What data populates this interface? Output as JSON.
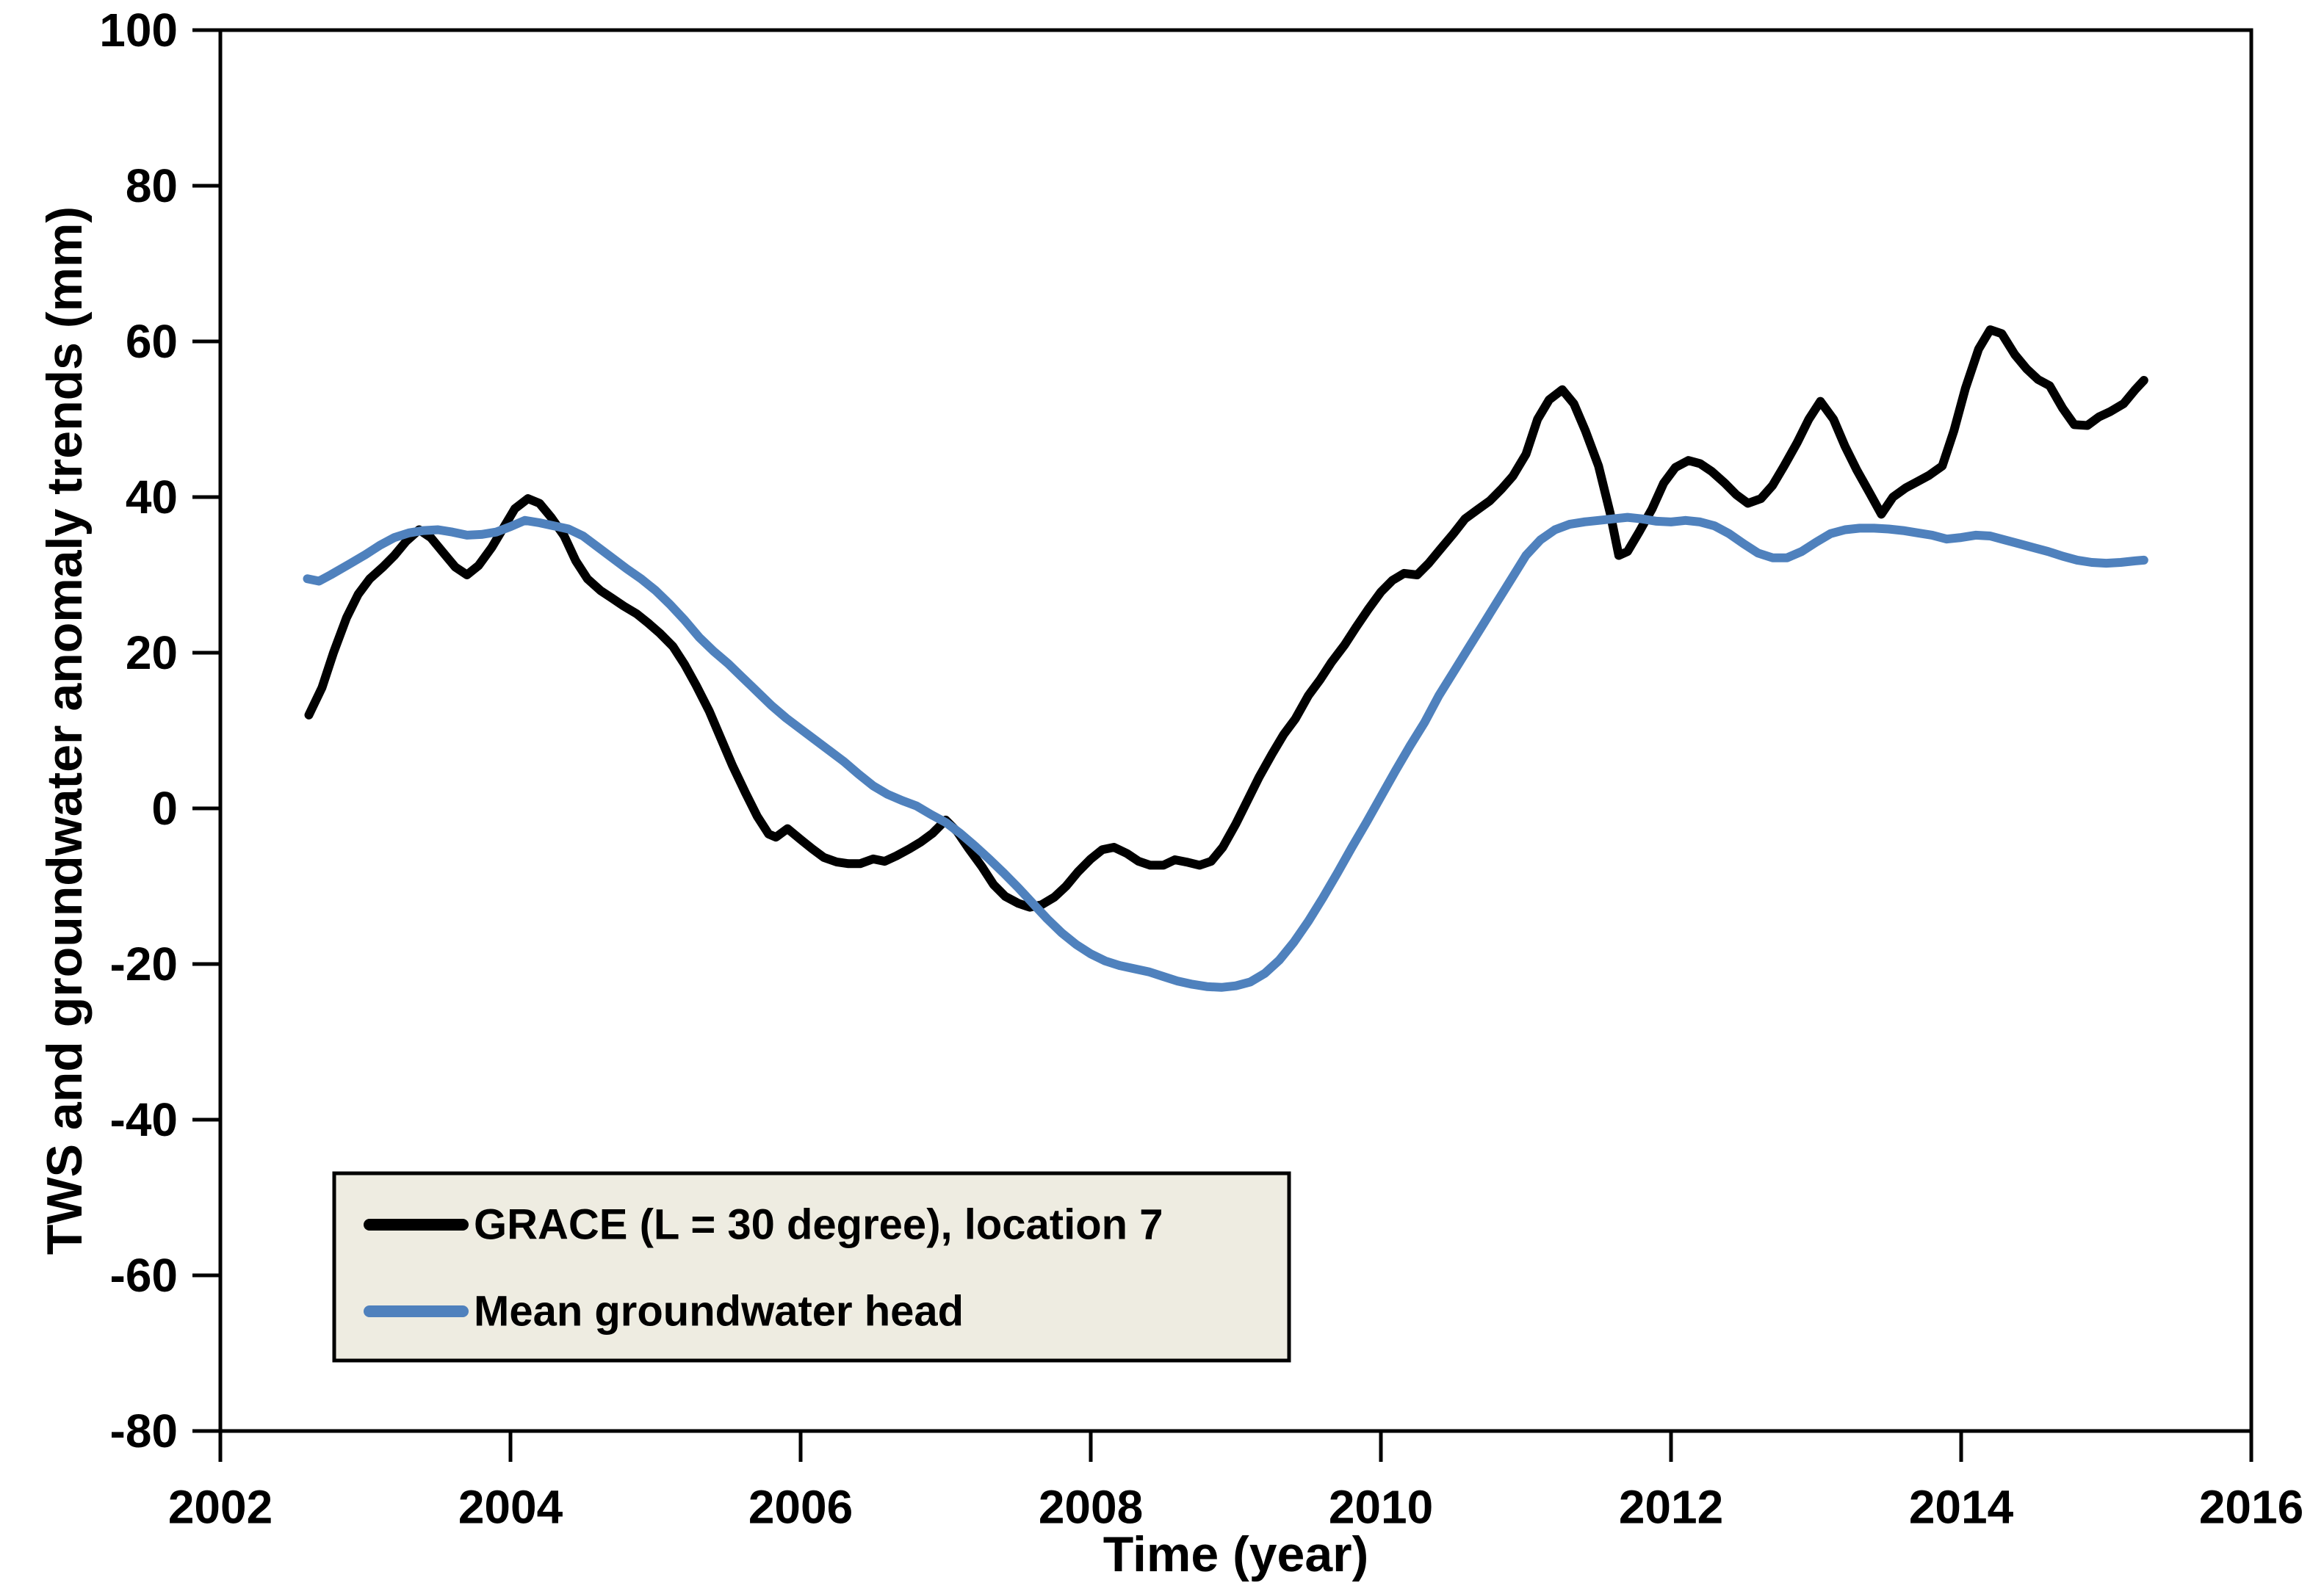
{
  "figure": {
    "background": "#ffffff"
  },
  "chart_data": {
    "type": "line",
    "title": "",
    "xlabel": "Time (year)",
    "ylabel": "TWS and groundwater anomaly trends (mm)",
    "xlim": [
      2002,
      2016
    ],
    "ylim": [
      -80,
      100
    ],
    "x_ticks": [
      2002,
      2004,
      2006,
      2008,
      2010,
      2012,
      2014,
      2016
    ],
    "y_ticks": [
      100,
      80,
      60,
      40,
      20,
      0,
      -20,
      -40,
      -60,
      -80
    ],
    "grid": false,
    "axis_color": "#000000",
    "legend": {
      "position": "lower-left",
      "background": "#eeece1",
      "border_color": "#000000"
    },
    "series": [
      {
        "name": "GRACE (L = 30 degree), location 7",
        "color": "#000000",
        "points": [
          [
            2002.61,
            12
          ],
          [
            2002.7,
            15.5
          ],
          [
            2002.78,
            20
          ],
          [
            2002.87,
            24.5
          ],
          [
            2002.95,
            27.5
          ],
          [
            2003.03,
            29.5
          ],
          [
            2003.12,
            31
          ],
          [
            2003.2,
            32.5
          ],
          [
            2003.28,
            34.3
          ],
          [
            2003.37,
            35.8
          ],
          [
            2003.45,
            34.8
          ],
          [
            2003.53,
            33
          ],
          [
            2003.62,
            31
          ],
          [
            2003.7,
            30
          ],
          [
            2003.78,
            31.2
          ],
          [
            2003.87,
            33.5
          ],
          [
            2003.95,
            36
          ],
          [
            2004.03,
            38.5
          ],
          [
            2004.12,
            39.8
          ],
          [
            2004.2,
            39.2
          ],
          [
            2004.28,
            37.4
          ],
          [
            2004.37,
            35
          ],
          [
            2004.45,
            31.8
          ],
          [
            2004.53,
            29.5
          ],
          [
            2004.62,
            28
          ],
          [
            2004.7,
            27
          ],
          [
            2004.78,
            26
          ],
          [
            2004.87,
            25
          ],
          [
            2004.95,
            23.8
          ],
          [
            2005.03,
            22.5
          ],
          [
            2005.12,
            20.8
          ],
          [
            2005.2,
            18.5
          ],
          [
            2005.28,
            15.8
          ],
          [
            2005.37,
            12.5
          ],
          [
            2005.45,
            9
          ],
          [
            2005.53,
            5.5
          ],
          [
            2005.62,
            2
          ],
          [
            2005.7,
            -1
          ],
          [
            2005.78,
            -3.3
          ],
          [
            2005.83,
            -3.7
          ],
          [
            2005.91,
            -2.6
          ],
          [
            2006.0,
            -4
          ],
          [
            2006.08,
            -5.2
          ],
          [
            2006.16,
            -6.3
          ],
          [
            2006.25,
            -6.9
          ],
          [
            2006.33,
            -7.1
          ],
          [
            2006.41,
            -7.1
          ],
          [
            2006.5,
            -6.5
          ],
          [
            2006.58,
            -6.8
          ],
          [
            2006.66,
            -6.1
          ],
          [
            2006.75,
            -5.2
          ],
          [
            2006.83,
            -4.3
          ],
          [
            2006.91,
            -3.2
          ],
          [
            2007.0,
            -1.5
          ],
          [
            2007.08,
            -3
          ],
          [
            2007.16,
            -5.2
          ],
          [
            2007.25,
            -7.5
          ],
          [
            2007.33,
            -9.8
          ],
          [
            2007.41,
            -11.3
          ],
          [
            2007.5,
            -12.2
          ],
          [
            2007.58,
            -12.7
          ],
          [
            2007.66,
            -12.4
          ],
          [
            2007.75,
            -11.4
          ],
          [
            2007.83,
            -10
          ],
          [
            2007.91,
            -8.2
          ],
          [
            2008.0,
            -6.5
          ],
          [
            2008.08,
            -5.3
          ],
          [
            2008.16,
            -5
          ],
          [
            2008.25,
            -5.8
          ],
          [
            2008.33,
            -6.8
          ],
          [
            2008.41,
            -7.3
          ],
          [
            2008.5,
            -7.3
          ],
          [
            2008.58,
            -6.6
          ],
          [
            2008.66,
            -6.9
          ],
          [
            2008.75,
            -7.3
          ],
          [
            2008.83,
            -6.8
          ],
          [
            2008.91,
            -5
          ],
          [
            2009.0,
            -2
          ],
          [
            2009.08,
            1
          ],
          [
            2009.16,
            4
          ],
          [
            2009.25,
            7
          ],
          [
            2009.33,
            9.5
          ],
          [
            2009.41,
            11.5
          ],
          [
            2009.5,
            14.5
          ],
          [
            2009.58,
            16.5
          ],
          [
            2009.66,
            18.8
          ],
          [
            2009.75,
            21
          ],
          [
            2009.83,
            23.3
          ],
          [
            2009.91,
            25.5
          ],
          [
            2010.0,
            27.8
          ],
          [
            2010.08,
            29.3
          ],
          [
            2010.16,
            30.2
          ],
          [
            2010.25,
            30.0
          ],
          [
            2010.33,
            31.5
          ],
          [
            2010.41,
            33.3
          ],
          [
            2010.5,
            35.3
          ],
          [
            2010.58,
            37.2
          ],
          [
            2010.66,
            38.3
          ],
          [
            2010.75,
            39.5
          ],
          [
            2010.83,
            41
          ],
          [
            2010.91,
            42.7
          ],
          [
            2011.0,
            45.5
          ],
          [
            2011.08,
            50
          ],
          [
            2011.16,
            52.5
          ],
          [
            2011.25,
            53.8
          ],
          [
            2011.33,
            52
          ],
          [
            2011.41,
            48.5
          ],
          [
            2011.5,
            44
          ],
          [
            2011.58,
            38
          ],
          [
            2011.64,
            32.5
          ],
          [
            2011.7,
            33
          ],
          [
            2011.78,
            35.5
          ],
          [
            2011.87,
            38.5
          ],
          [
            2011.95,
            41.8
          ],
          [
            2012.03,
            43.8
          ],
          [
            2012.12,
            44.7
          ],
          [
            2012.2,
            44.3
          ],
          [
            2012.28,
            43.3
          ],
          [
            2012.37,
            41.8
          ],
          [
            2012.45,
            40.3
          ],
          [
            2012.53,
            39.2
          ],
          [
            2012.62,
            39.8
          ],
          [
            2012.7,
            41.5
          ],
          [
            2012.78,
            44
          ],
          [
            2012.87,
            47
          ],
          [
            2012.95,
            50
          ],
          [
            2013.03,
            52.3
          ],
          [
            2013.12,
            50
          ],
          [
            2013.2,
            46.5
          ],
          [
            2013.28,
            43.5
          ],
          [
            2013.37,
            40.5
          ],
          [
            2013.45,
            37.8
          ],
          [
            2013.53,
            40
          ],
          [
            2013.62,
            41.2
          ],
          [
            2013.7,
            42
          ],
          [
            2013.78,
            42.8
          ],
          [
            2013.87,
            44
          ],
          [
            2013.95,
            48.5
          ],
          [
            2014.03,
            54
          ],
          [
            2014.12,
            59
          ],
          [
            2014.2,
            61.5
          ],
          [
            2014.28,
            61
          ],
          [
            2014.37,
            58.3
          ],
          [
            2014.45,
            56.5
          ],
          [
            2014.53,
            55.1
          ],
          [
            2014.61,
            54.3
          ],
          [
            2014.7,
            51.4
          ],
          [
            2014.78,
            49.3
          ],
          [
            2014.87,
            49.2
          ],
          [
            2014.95,
            50.3
          ],
          [
            2015.03,
            51
          ],
          [
            2015.12,
            52
          ],
          [
            2015.2,
            53.8
          ],
          [
            2015.26,
            55
          ]
        ]
      },
      {
        "name": "Mean groundwater head",
        "color": "#4f81bd",
        "points": [
          [
            2002.6,
            29.5
          ],
          [
            2002.68,
            29.2
          ],
          [
            2002.76,
            30.0
          ],
          [
            2002.89,
            31.4
          ],
          [
            2003.0,
            32.6
          ],
          [
            2003.1,
            33.8
          ],
          [
            2003.2,
            34.8
          ],
          [
            2003.3,
            35.4
          ],
          [
            2003.4,
            35.7
          ],
          [
            2003.5,
            35.8
          ],
          [
            2003.6,
            35.5
          ],
          [
            2003.7,
            35.1
          ],
          [
            2003.8,
            35.2
          ],
          [
            2003.9,
            35.5
          ],
          [
            2004.0,
            36.2
          ],
          [
            2004.1,
            37.0
          ],
          [
            2004.2,
            36.7
          ],
          [
            2004.3,
            36.3
          ],
          [
            2004.4,
            35.9
          ],
          [
            2004.5,
            35.0
          ],
          [
            2004.6,
            33.6
          ],
          [
            2004.7,
            32.2
          ],
          [
            2004.8,
            30.8
          ],
          [
            2004.9,
            29.5
          ],
          [
            2005.0,
            28.0
          ],
          [
            2005.1,
            26.2
          ],
          [
            2005.2,
            24.2
          ],
          [
            2005.3,
            22.0
          ],
          [
            2005.4,
            20.2
          ],
          [
            2005.5,
            18.6
          ],
          [
            2005.6,
            16.8
          ],
          [
            2005.7,
            15.0
          ],
          [
            2005.8,
            13.2
          ],
          [
            2005.9,
            11.6
          ],
          [
            2006.0,
            10.2
          ],
          [
            2006.1,
            8.8
          ],
          [
            2006.2,
            7.4
          ],
          [
            2006.3,
            6.0
          ],
          [
            2006.4,
            4.4
          ],
          [
            2006.5,
            2.9
          ],
          [
            2006.6,
            1.8
          ],
          [
            2006.7,
            1.0
          ],
          [
            2006.8,
            0.3
          ],
          [
            2006.9,
            -0.8
          ],
          [
            2007.0,
            -1.8
          ],
          [
            2007.1,
            -3.2
          ],
          [
            2007.2,
            -4.8
          ],
          [
            2007.3,
            -6.5
          ],
          [
            2007.4,
            -8.3
          ],
          [
            2007.5,
            -10.2
          ],
          [
            2007.6,
            -12.2
          ],
          [
            2007.7,
            -14.2
          ],
          [
            2007.8,
            -16.0
          ],
          [
            2007.9,
            -17.5
          ],
          [
            2008.0,
            -18.7
          ],
          [
            2008.1,
            -19.6
          ],
          [
            2008.2,
            -20.2
          ],
          [
            2008.3,
            -20.6
          ],
          [
            2008.4,
            -21.0
          ],
          [
            2008.5,
            -21.6
          ],
          [
            2008.6,
            -22.2
          ],
          [
            2008.7,
            -22.6
          ],
          [
            2008.8,
            -22.9
          ],
          [
            2008.9,
            -23.0
          ],
          [
            2009.0,
            -22.8
          ],
          [
            2009.1,
            -22.3
          ],
          [
            2009.2,
            -21.2
          ],
          [
            2009.3,
            -19.5
          ],
          [
            2009.4,
            -17.2
          ],
          [
            2009.5,
            -14.5
          ],
          [
            2009.6,
            -11.5
          ],
          [
            2009.7,
            -8.3
          ],
          [
            2009.8,
            -5.0
          ],
          [
            2009.9,
            -1.8
          ],
          [
            2010.0,
            1.5
          ],
          [
            2010.1,
            4.8
          ],
          [
            2010.2,
            8.0
          ],
          [
            2010.3,
            11.0
          ],
          [
            2010.4,
            14.5
          ],
          [
            2010.5,
            17.5
          ],
          [
            2010.6,
            20.5
          ],
          [
            2010.7,
            23.5
          ],
          [
            2010.8,
            26.5
          ],
          [
            2010.9,
            29.5
          ],
          [
            2011.0,
            32.5
          ],
          [
            2011.1,
            34.5
          ],
          [
            2011.2,
            35.8
          ],
          [
            2011.3,
            36.5
          ],
          [
            2011.4,
            36.8
          ],
          [
            2011.5,
            37.0
          ],
          [
            2011.6,
            37.2
          ],
          [
            2011.7,
            37.4
          ],
          [
            2011.8,
            37.2
          ],
          [
            2011.9,
            36.9
          ],
          [
            2012.0,
            36.8
          ],
          [
            2012.1,
            37.0
          ],
          [
            2012.2,
            36.8
          ],
          [
            2012.3,
            36.3
          ],
          [
            2012.4,
            35.3
          ],
          [
            2012.5,
            34.0
          ],
          [
            2012.6,
            32.8
          ],
          [
            2012.7,
            32.2
          ],
          [
            2012.8,
            32.2
          ],
          [
            2012.9,
            33.0
          ],
          [
            2013.0,
            34.2
          ],
          [
            2013.1,
            35.3
          ],
          [
            2013.2,
            35.8
          ],
          [
            2013.3,
            36.0
          ],
          [
            2013.4,
            36.0
          ],
          [
            2013.5,
            35.9
          ],
          [
            2013.6,
            35.7
          ],
          [
            2013.7,
            35.4
          ],
          [
            2013.8,
            35.1
          ],
          [
            2013.9,
            34.6
          ],
          [
            2014.0,
            34.8
          ],
          [
            2014.1,
            35.1
          ],
          [
            2014.2,
            35.0
          ],
          [
            2014.3,
            34.5
          ],
          [
            2014.4,
            34.0
          ],
          [
            2014.5,
            33.5
          ],
          [
            2014.6,
            33.0
          ],
          [
            2014.7,
            32.4
          ],
          [
            2014.8,
            31.9
          ],
          [
            2014.9,
            31.6
          ],
          [
            2015.0,
            31.5
          ],
          [
            2015.1,
            31.6
          ],
          [
            2015.2,
            31.8
          ],
          [
            2015.26,
            31.9
          ]
        ]
      }
    ]
  }
}
